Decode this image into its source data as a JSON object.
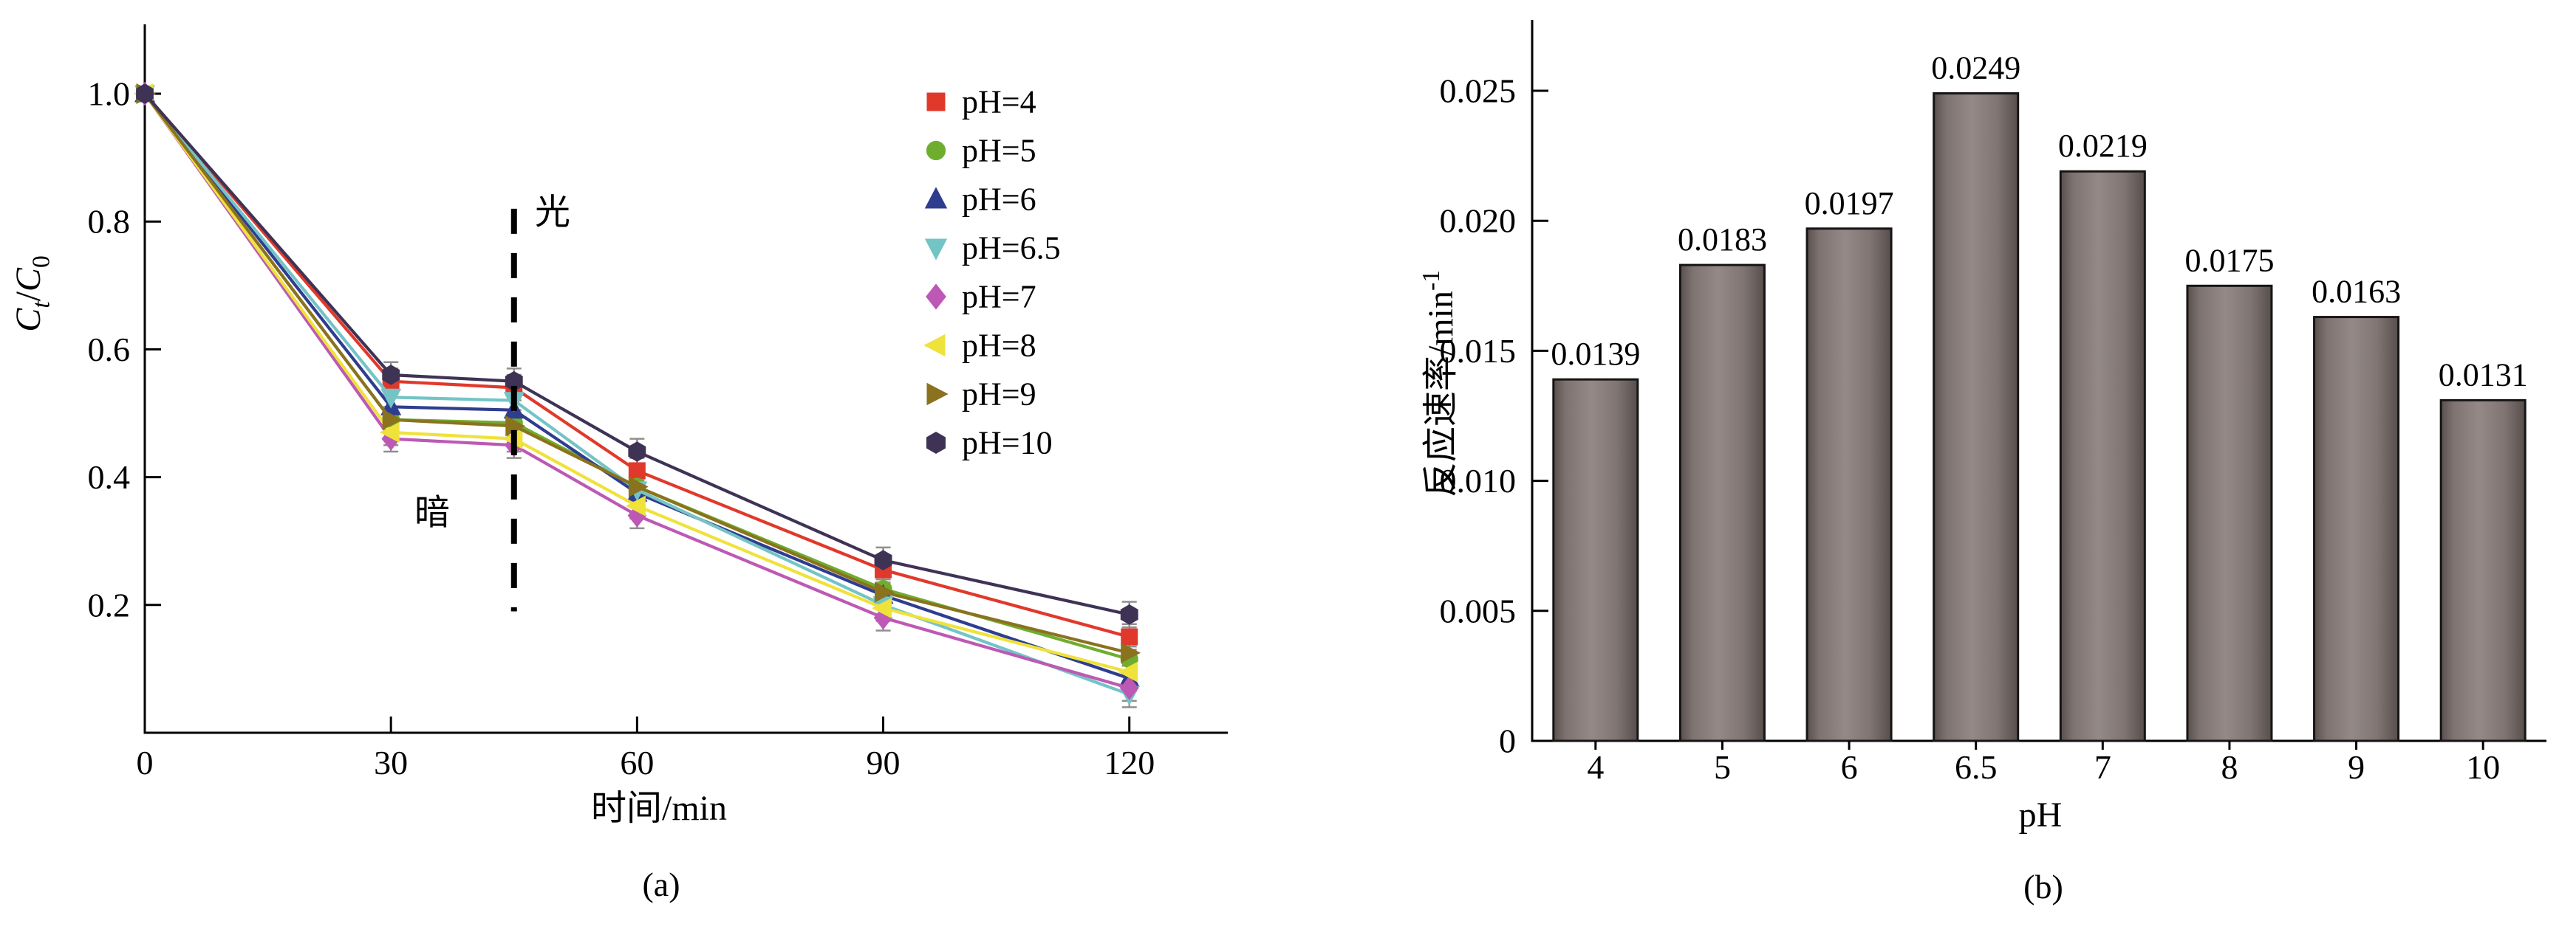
{
  "figure": {
    "background": "#ffffff"
  },
  "chart_data": [
    {
      "id": "panel_a",
      "type": "line",
      "caption": "(a)",
      "xlabel": "时间/min",
      "ylabel": "Ct/C0",
      "ylabel_parts": [
        {
          "text": "C",
          "italic": true
        },
        {
          "text": "t",
          "italic": true,
          "script": "sub"
        },
        {
          "text": "/"
        },
        {
          "text": "C",
          "italic": true
        },
        {
          "text": "0",
          "script": "sub"
        }
      ],
      "x": [
        0,
        30,
        45,
        60,
        90,
        120
      ],
      "xticks": [
        0,
        30,
        60,
        90,
        120
      ],
      "xtick_labels": [
        "0",
        "30",
        "60",
        "90",
        "120"
      ],
      "yticks": [
        0.2,
        0.4,
        0.6,
        0.8,
        1.0
      ],
      "ytick_labels": [
        "0.2",
        "0.4",
        "0.6",
        "0.8",
        "1.0"
      ],
      "xlim": [
        0,
        132
      ],
      "ylim": [
        0,
        1.108
      ],
      "grid": false,
      "legend_position": "top-right-inside",
      "yerr": 0.02,
      "divider": {
        "x": 45,
        "label_left": "暗",
        "label_right": "光",
        "y_from": 0.19,
        "y_to": 0.82
      },
      "series": [
        {
          "name": "pH=4",
          "color": "#e0392b",
          "marker": "square",
          "values": [
            1.0,
            0.55,
            0.54,
            0.41,
            0.255,
            0.15
          ]
        },
        {
          "name": "pH=5",
          "color": "#6fad2f",
          "marker": "circle",
          "values": [
            1.0,
            0.49,
            0.485,
            0.385,
            0.225,
            0.115
          ]
        },
        {
          "name": "pH=6",
          "color": "#2e3d8f",
          "marker": "triangle-up",
          "values": [
            1.0,
            0.51,
            0.505,
            0.375,
            0.215,
            0.085
          ]
        },
        {
          "name": "pH=6.5",
          "color": "#74c4c6",
          "marker": "triangle-down",
          "values": [
            1.0,
            0.525,
            0.52,
            0.38,
            0.2,
            0.06
          ]
        },
        {
          "name": "pH=7",
          "color": "#bd59b4",
          "marker": "diamond",
          "values": [
            1.0,
            0.46,
            0.45,
            0.34,
            0.18,
            0.07
          ]
        },
        {
          "name": "pH=8",
          "color": "#efe23b",
          "marker": "triangle-left",
          "values": [
            1.0,
            0.47,
            0.46,
            0.355,
            0.195,
            0.095
          ]
        },
        {
          "name": "pH=9",
          "color": "#8a721f",
          "marker": "triangle-right",
          "values": [
            1.0,
            0.49,
            0.48,
            0.385,
            0.22,
            0.125
          ]
        },
        {
          "name": "pH=10",
          "color": "#3e3355",
          "marker": "hexagon",
          "values": [
            1.0,
            0.56,
            0.55,
            0.44,
            0.27,
            0.185
          ]
        }
      ]
    },
    {
      "id": "panel_b",
      "type": "bar",
      "caption": "(b)",
      "xlabel": "pH",
      "ylabel": "反应速率/min⁻¹",
      "ylabel_parts": [
        {
          "text": "反应速率/min"
        },
        {
          "text": "-1",
          "script": "super"
        }
      ],
      "categories": [
        "4",
        "5",
        "6",
        "6.5",
        "7",
        "8",
        "9",
        "10"
      ],
      "values": [
        0.0139,
        0.0183,
        0.0197,
        0.0249,
        0.0219,
        0.0175,
        0.0163,
        0.0131
      ],
      "bar_labels": [
        "0.0139",
        "0.0183",
        "0.0197",
        "0.0249",
        "0.0219",
        "0.0175",
        "0.0163",
        "0.0131"
      ],
      "yticks": [
        0,
        0.005,
        0.01,
        0.015,
        0.02,
        0.025
      ],
      "ytick_labels": [
        "0",
        "0.005",
        "0.010",
        "0.015",
        "0.020",
        "0.025"
      ],
      "ylim": [
        0,
        0.0277
      ],
      "grid": false,
      "bar_color": "#80756f",
      "bar_edge_color": "#151515"
    }
  ]
}
